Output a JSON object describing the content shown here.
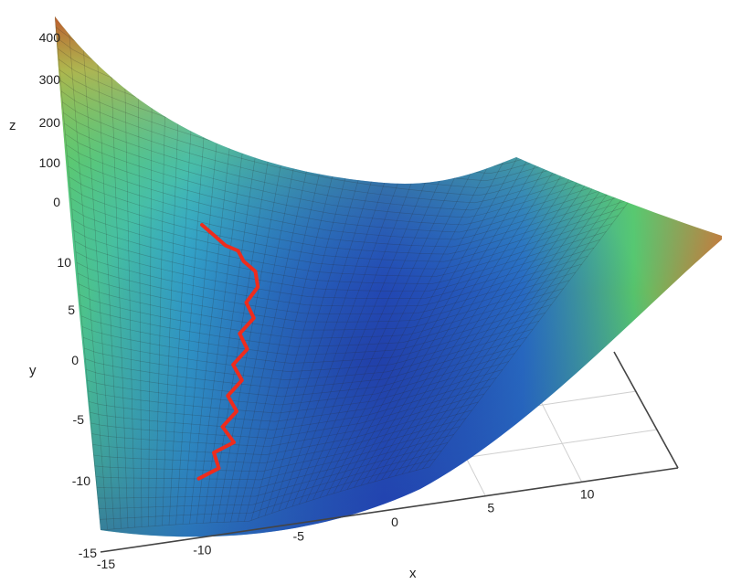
{
  "chart_data": {
    "type": "surface3d",
    "title": "",
    "xlabel": "x",
    "ylabel": "y",
    "zlabel": "z",
    "x_ticks": [
      "-15",
      "-10",
      "-5",
      "0",
      "5",
      "10"
    ],
    "y_ticks": [
      "-15",
      "-10",
      "-5",
      "0",
      "5",
      "10"
    ],
    "z_ticks": [
      "0",
      "100",
      "200",
      "300",
      "400"
    ],
    "xlim": [
      -15,
      15
    ],
    "ylim": [
      -15,
      15
    ],
    "zlim": [
      0,
      450
    ],
    "colormap": [
      "#1f2f9e",
      "#2b6fd0",
      "#34c3d2",
      "#5fcf63",
      "#d8d84a",
      "#e08030",
      "#c8321f"
    ],
    "descent_path": {
      "color": "#ee2c1d",
      "points": [
        [
          -11.5,
          -12.5
        ],
        [
          -10.0,
          -11.5
        ],
        [
          -10.5,
          -10.0
        ],
        [
          -9.0,
          -9.0
        ],
        [
          -10.0,
          -7.5
        ],
        [
          -9.0,
          -6.0
        ],
        [
          -9.8,
          -4.5
        ],
        [
          -8.8,
          -3.0
        ],
        [
          -9.6,
          -1.5
        ],
        [
          -8.6,
          0.0
        ],
        [
          -9.3,
          1.5
        ],
        [
          -8.3,
          3.0
        ],
        [
          -9.0,
          4.5
        ],
        [
          -8.2,
          6.0
        ],
        [
          -8.5,
          7.5
        ],
        [
          -9.5,
          8.5
        ],
        [
          -10.0,
          9.5
        ],
        [
          -11.0,
          10.0
        ],
        [
          -12.0,
          11.0
        ],
        [
          -13.0,
          12.0
        ]
      ]
    }
  }
}
